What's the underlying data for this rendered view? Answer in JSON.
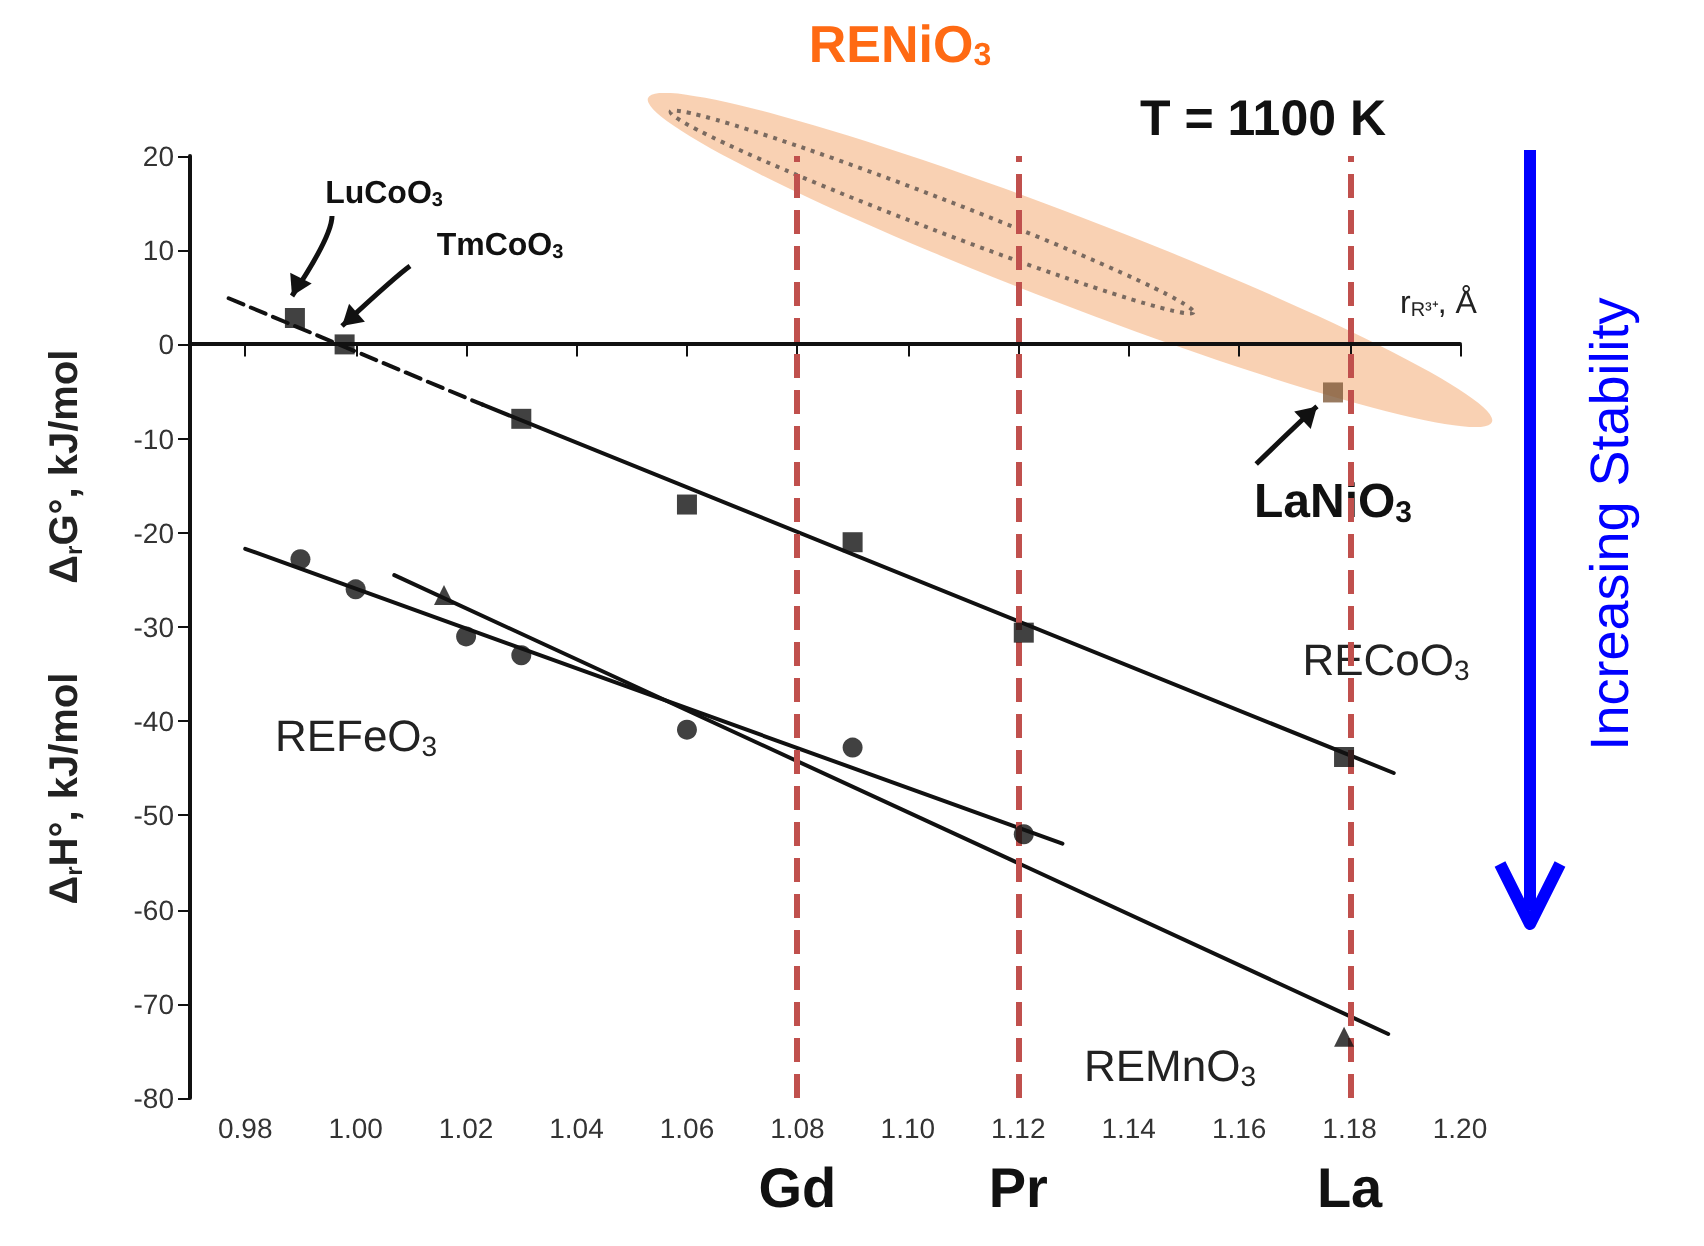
{
  "chart_data": {
    "type": "scatter",
    "title": "T = 1100 K",
    "xlabel": "r$_{R³⁺}$, Å",
    "ylabel": "Δ$_{r}$H°, kJ/mol        Δ$_{r}$G°, kJ/mol",
    "xlim": [
      0.97,
      1.2
    ],
    "xticks": [
      0.98,
      {
        "value": 1.0,
        "label": "1.00"
      },
      1.02,
      1.04,
      1.06,
      1.08,
      {
        "value": 1.1,
        "label": "1.10"
      },
      1.12,
      1.14,
      1.16,
      1.18,
      {
        "value": 1.2,
        "label": "1.20"
      }
    ],
    "ylim": [
      -80,
      20
    ],
    "yticks": [
      -80,
      -70,
      -60,
      -50,
      -40,
      -30,
      -20,
      -10,
      0,
      10,
      20
    ],
    "series": [
      {
        "marker": "square",
        "color": "#111111",
        "x": [
          0.989,
          0.998,
          1.03,
          1.06,
          1.09,
          1.121,
          1.179
        ],
        "values": [
          2.8,
          0,
          -7.9,
          -17,
          -21,
          -30.6,
          -43.8
        ]
      },
      {
        "marker": "circle",
        "color": "#111111",
        "x": [
          0.99,
          1.0,
          1.02,
          1.03,
          1.06,
          1.09,
          1.121
        ],
        "values": [
          -22.8,
          -26,
          -31,
          -33,
          -40.9,
          -42.8,
          -52
        ]
      },
      {
        "marker": "triangle",
        "color": "#111111",
        "x": [
          1.016,
          1.179
        ],
        "values": [
          -26.6,
          -73.5
        ]
      },
      {
        "marker": "square",
        "color": "#7f5a3a",
        "x": [
          1.177
        ],
        "values": [
          -5.1
        ]
      },
      {
        "type": "line",
        "marker": "none",
        "line_style": "solid",
        "color": "#111111",
        "x": [
          1.023,
          1.188
        ],
        "values": [
          -6.4,
          -45.5
        ]
      },
      {
        "type": "line",
        "marker": "none",
        "line_style": "dashed",
        "color": "#111111",
        "x": [
          0.977,
          1.023
        ],
        "values": [
          4.9,
          -6.4
        ]
      },
      {
        "type": "line",
        "marker": "none",
        "line_style": "solid",
        "color": "#111111",
        "x": [
          0.98,
          1.128
        ],
        "values": [
          -21.7,
          -53
        ]
      },
      {
        "type": "line",
        "marker": "none",
        "line_style": "solid",
        "color": "#111111",
        "x": [
          1.007,
          1.187
        ],
        "values": [
          -24.5,
          -73.2
        ]
      }
    ],
    "ref_lines": [
      {
        "axis": "x",
        "value": 1.08,
        "label": "Gd",
        "color": "#c0504d",
        "line_style": "dashed"
      },
      {
        "axis": "x",
        "value": 1.12,
        "label": "Pr",
        "color": "#c0504d",
        "line_style": "dashed"
      },
      {
        "axis": "x",
        "value": 1.18,
        "label": "La",
        "color": "#c0504d",
        "line_style": "dashed"
      }
    ],
    "annotations": [
      "RENiO$_{3}$",
      "Increasing Stability",
      "LuCoO$_{3}$",
      "TmCoO$_{3}$",
      {
        "text": "LaNiO$_{3}$",
        "x": 1.177,
        "y": -5.1
      },
      "RECoO$_{3}$",
      "REFeO$_{3}$",
      "REMnO$_{3}$"
    ]
  }
}
